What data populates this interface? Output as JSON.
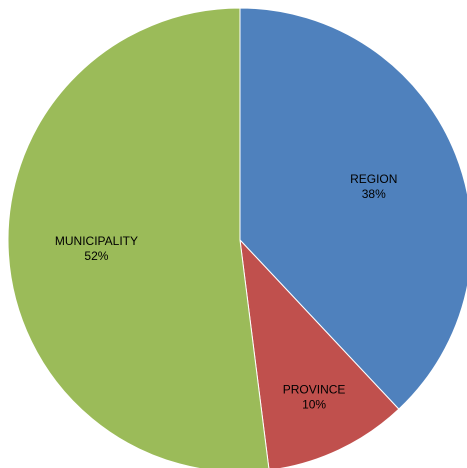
{
  "chart_data": {
    "type": "pie",
    "title": "",
    "categories": [
      "REGION",
      "PROVINCE",
      "MUNICIPALITY"
    ],
    "values": [
      38,
      10,
      52
    ],
    "value_labels": [
      "38%",
      "10%",
      "52%"
    ],
    "colors": [
      "#4F81BD",
      "#C0504D",
      "#9BBB59"
    ],
    "start_angle_deg": 0,
    "direction": "clockwise",
    "legend": "none"
  }
}
